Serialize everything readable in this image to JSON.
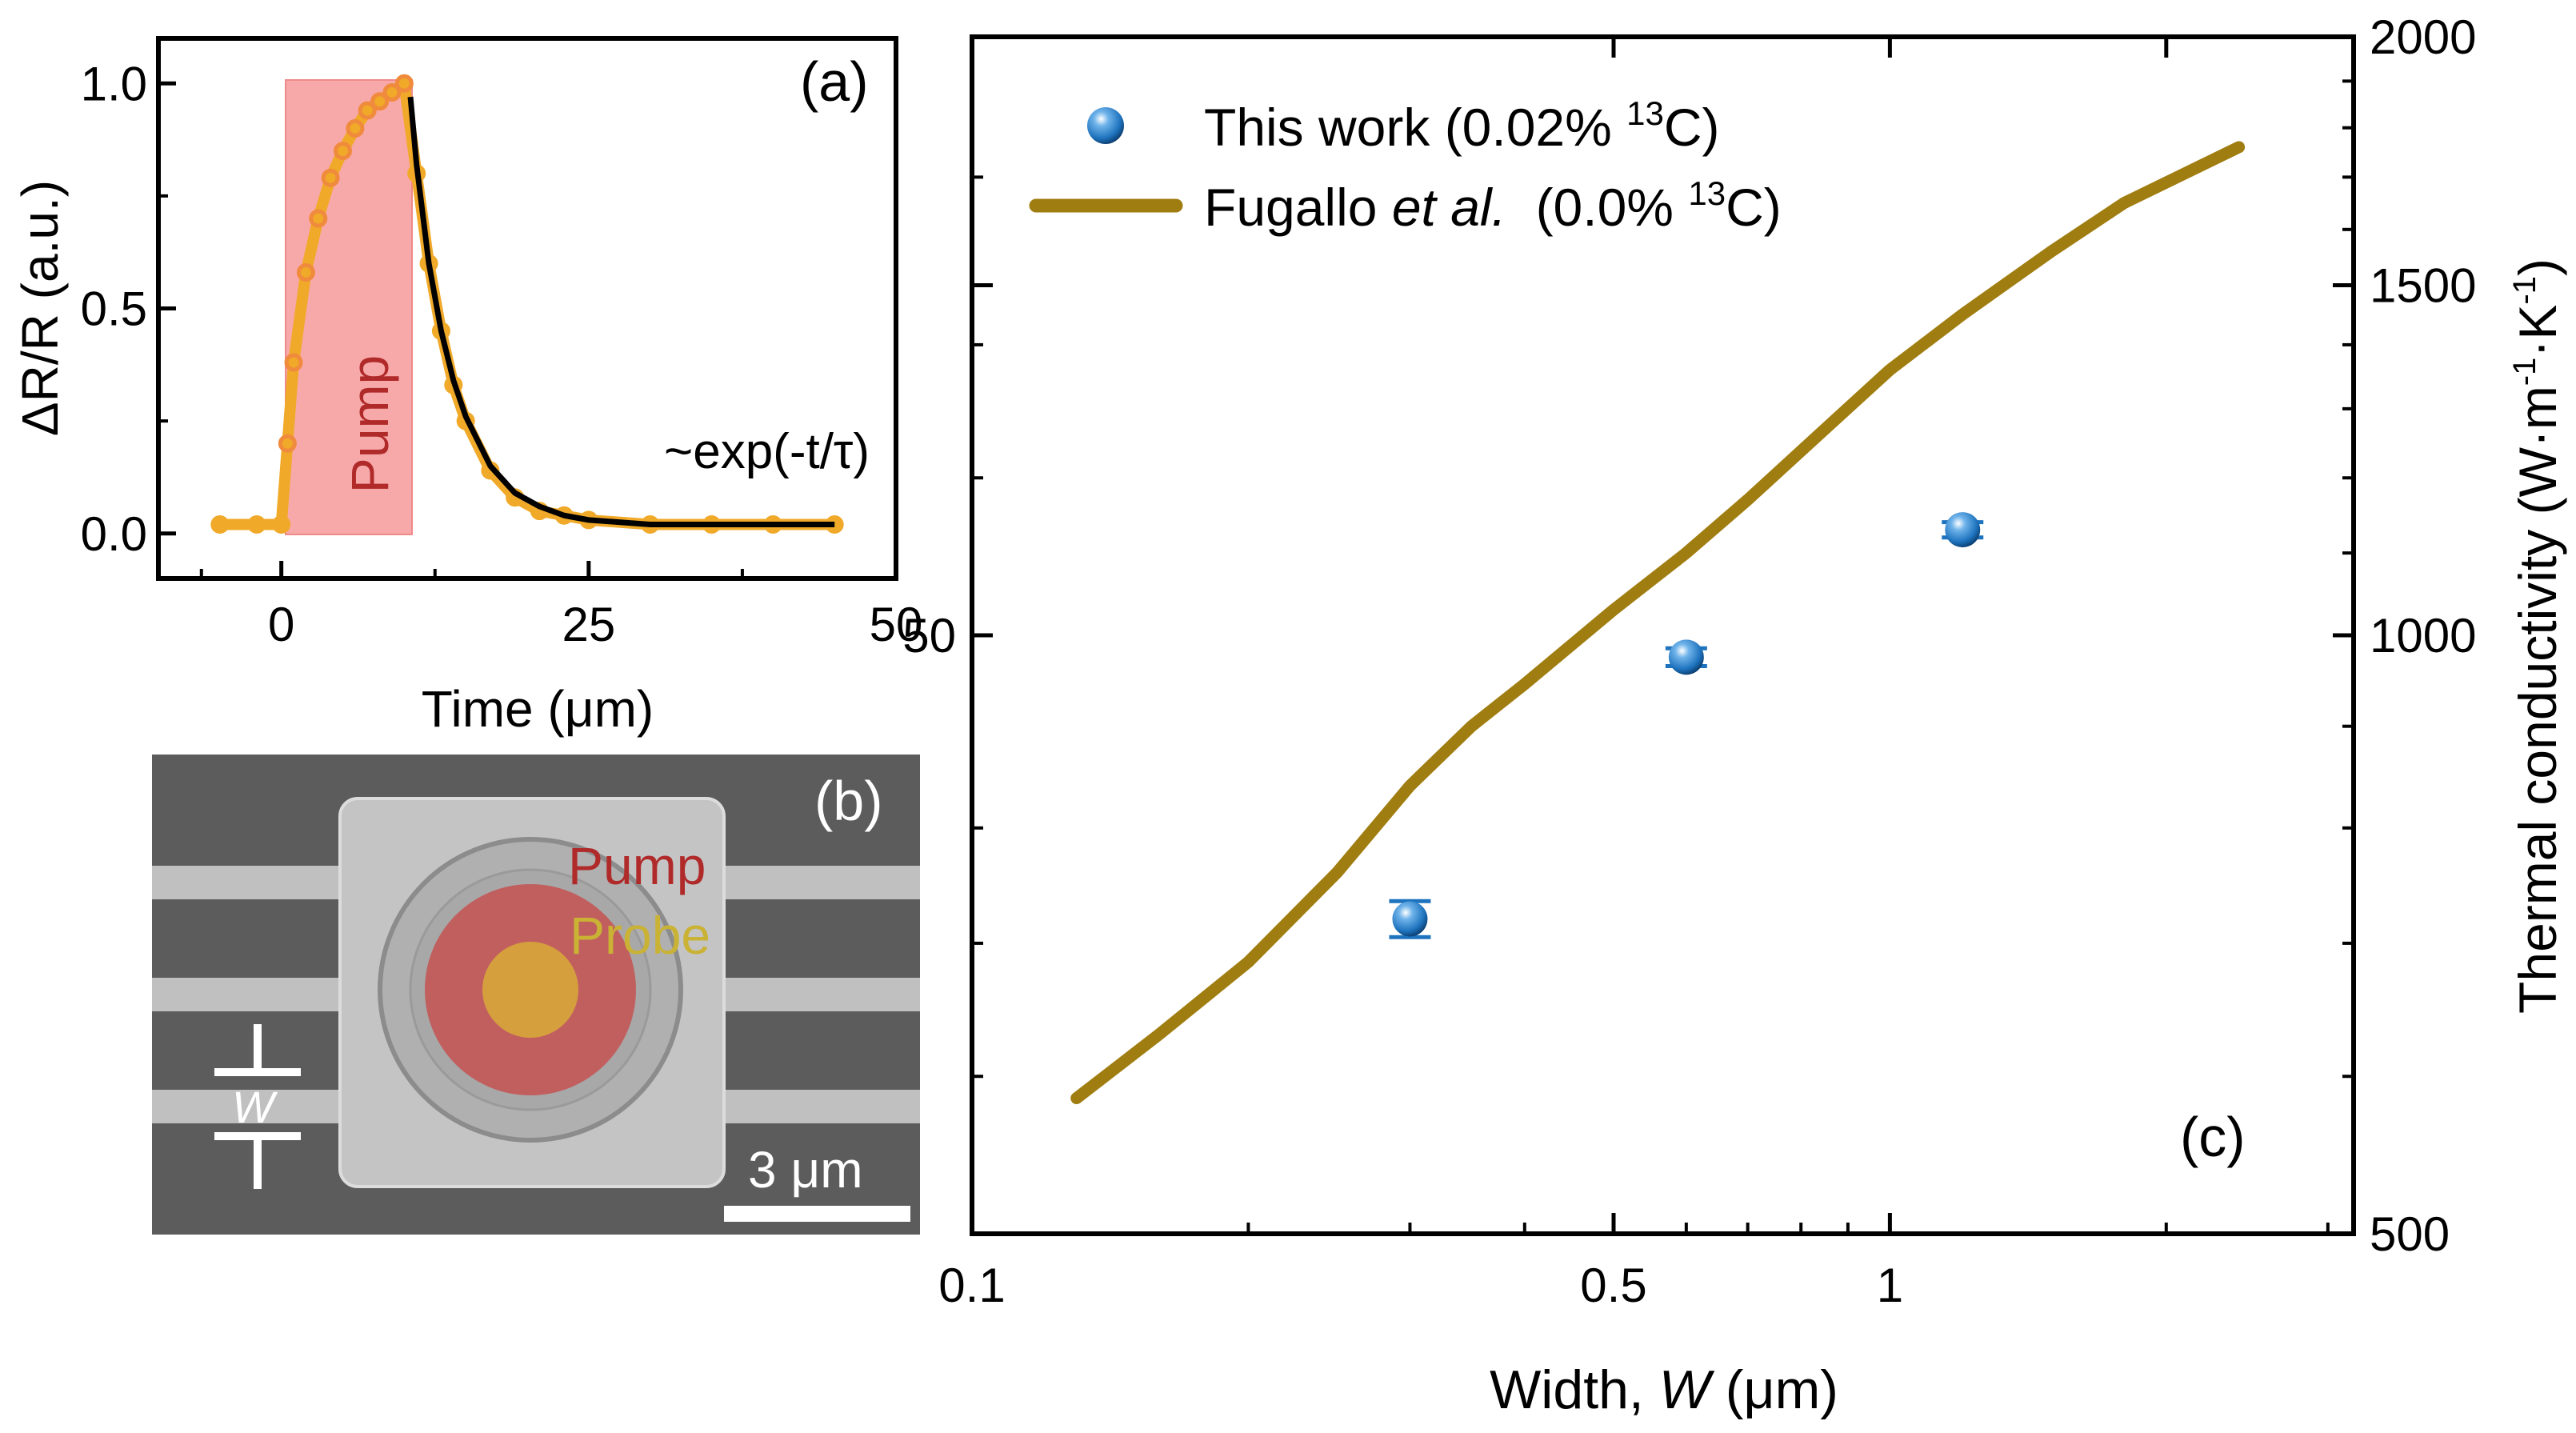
{
  "figure": {
    "panel_a": {
      "label": "(a)",
      "pump_label": "Pump",
      "fit_label": "~exp(-t/τ)",
      "colors": {
        "data": "#f0a928",
        "pump_phase": "#f08a3c",
        "fit": "#000000",
        "pump_box": "#f7a9a9"
      }
    },
    "panel_b": {
      "label": "(b)",
      "pump_label": "Pump",
      "probe_label": "Probe",
      "width_label": "W",
      "scalebar_label": "3 μm",
      "colors": {
        "background": "#5a5a5a",
        "device": "#bdbdbd",
        "pump_spot": "#c84a4a",
        "probe_spot": "#d7a63b",
        "pump_text": "#b02a2a",
        "probe_text": "#c9b234"
      }
    },
    "panel_c": {
      "label": "(c)",
      "legend": {
        "this_work": {
          "text": "This work (0.02% ",
          "isotope": "13",
          "suffix": "C)"
        },
        "fugallo": {
          "text": "Fugallo ",
          "etal": "et al.",
          "paren": "  (0.0% ",
          "isotope": "13",
          "suffix": "C)"
        }
      },
      "colors": {
        "marker": "#1e73be",
        "curve": "#a07d10"
      }
    }
  },
  "chart_data": [
    {
      "panel": "a",
      "type": "line",
      "title": "",
      "xlabel": "Time (μm)",
      "ylabel": "ΔR/R (a.u.)",
      "xlim": [
        -10,
        50
      ],
      "ylim": [
        -0.1,
        1.1
      ],
      "xticks": [
        "0",
        "25",
        "50"
      ],
      "yticks": [
        "0.0",
        "0.5",
        "1.0"
      ],
      "pump_window": [
        0,
        10
      ],
      "fit_model": "exponential decay",
      "series": [
        {
          "name": "measured",
          "x": [
            -5,
            -2,
            0,
            0.5,
            1,
            2,
            3,
            4,
            5,
            6,
            7,
            8,
            9,
            10,
            11,
            12,
            13,
            14,
            15,
            17,
            19,
            21,
            23,
            25,
            30,
            35,
            40,
            45
          ],
          "values": [
            0.02,
            0.02,
            0.02,
            0.2,
            0.38,
            0.58,
            0.7,
            0.79,
            0.85,
            0.9,
            0.94,
            0.96,
            0.98,
            1.0,
            0.8,
            0.6,
            0.45,
            0.33,
            0.25,
            0.14,
            0.08,
            0.05,
            0.04,
            0.03,
            0.02,
            0.02,
            0.02,
            0.02
          ]
        },
        {
          "name": "fit",
          "x": [
            10.5,
            11,
            12,
            13,
            14,
            15,
            17,
            19,
            21,
            23,
            25,
            30,
            35,
            40,
            45
          ],
          "values": [
            0.97,
            0.82,
            0.6,
            0.45,
            0.34,
            0.26,
            0.15,
            0.09,
            0.06,
            0.04,
            0.03,
            0.02,
            0.02,
            0.02,
            0.02
          ]
        }
      ]
    },
    {
      "panel": "c",
      "type": "scatter",
      "title": "",
      "xlabel": "Width, W (μm)",
      "xlabel_parts": [
        "Width, ",
        "W",
        " (μm)"
      ],
      "ylabel": "Thermal conductivity (W·m⁻¹·K⁻¹)",
      "ylabel_parts": [
        "Thermal conductivity (W·m",
        "-1",
        "·K",
        "-1",
        ")"
      ],
      "xscale": "log",
      "yscale": "log",
      "xlim": [
        0.1,
        3.2
      ],
      "ylim": [
        500,
        2000
      ],
      "xticks": [
        "0.1",
        "0.5",
        "1"
      ],
      "yticks": [
        "500",
        "1000",
        "1500",
        "2000"
      ],
      "extra_tick": "50",
      "series": [
        {
          "name": "This work (0.02% 13C)",
          "x": [
            0.3,
            0.6,
            1.2
          ],
          "values": [
            720,
            975,
            1130
          ],
          "yerr": [
            15,
            10,
            10
          ]
        },
        {
          "name": "Fugallo et al. (0.0% 13C)",
          "x": [
            0.13,
            0.16,
            0.2,
            0.25,
            0.3,
            0.35,
            0.4,
            0.5,
            0.6,
            0.7,
            0.85,
            1.0,
            1.2,
            1.5,
            1.8,
            2.4
          ],
          "values": [
            585,
            630,
            685,
            760,
            840,
            900,
            945,
            1030,
            1100,
            1170,
            1270,
            1360,
            1450,
            1560,
            1650,
            1760
          ]
        }
      ]
    }
  ]
}
